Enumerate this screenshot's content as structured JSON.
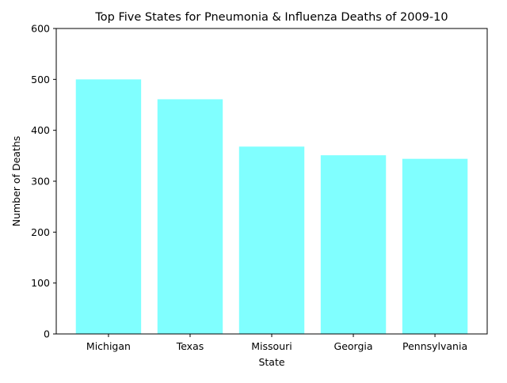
{
  "chart_data": {
    "type": "bar",
    "title": "Top Five States for Pneumonia & Influenza Deaths of 2009-10",
    "xlabel": "State",
    "ylabel": "Number of Deaths",
    "categories": [
      "Michigan",
      "Texas",
      "Missouri",
      "Georgia",
      "Pennsylvania"
    ],
    "values": [
      500,
      461,
      368,
      351,
      344
    ],
    "ylim": [
      0,
      600
    ],
    "yticks": [
      "0",
      "100",
      "200",
      "300",
      "400",
      "500",
      "600"
    ],
    "grid": false,
    "legend": "none",
    "bar_color": "#80ffff"
  }
}
